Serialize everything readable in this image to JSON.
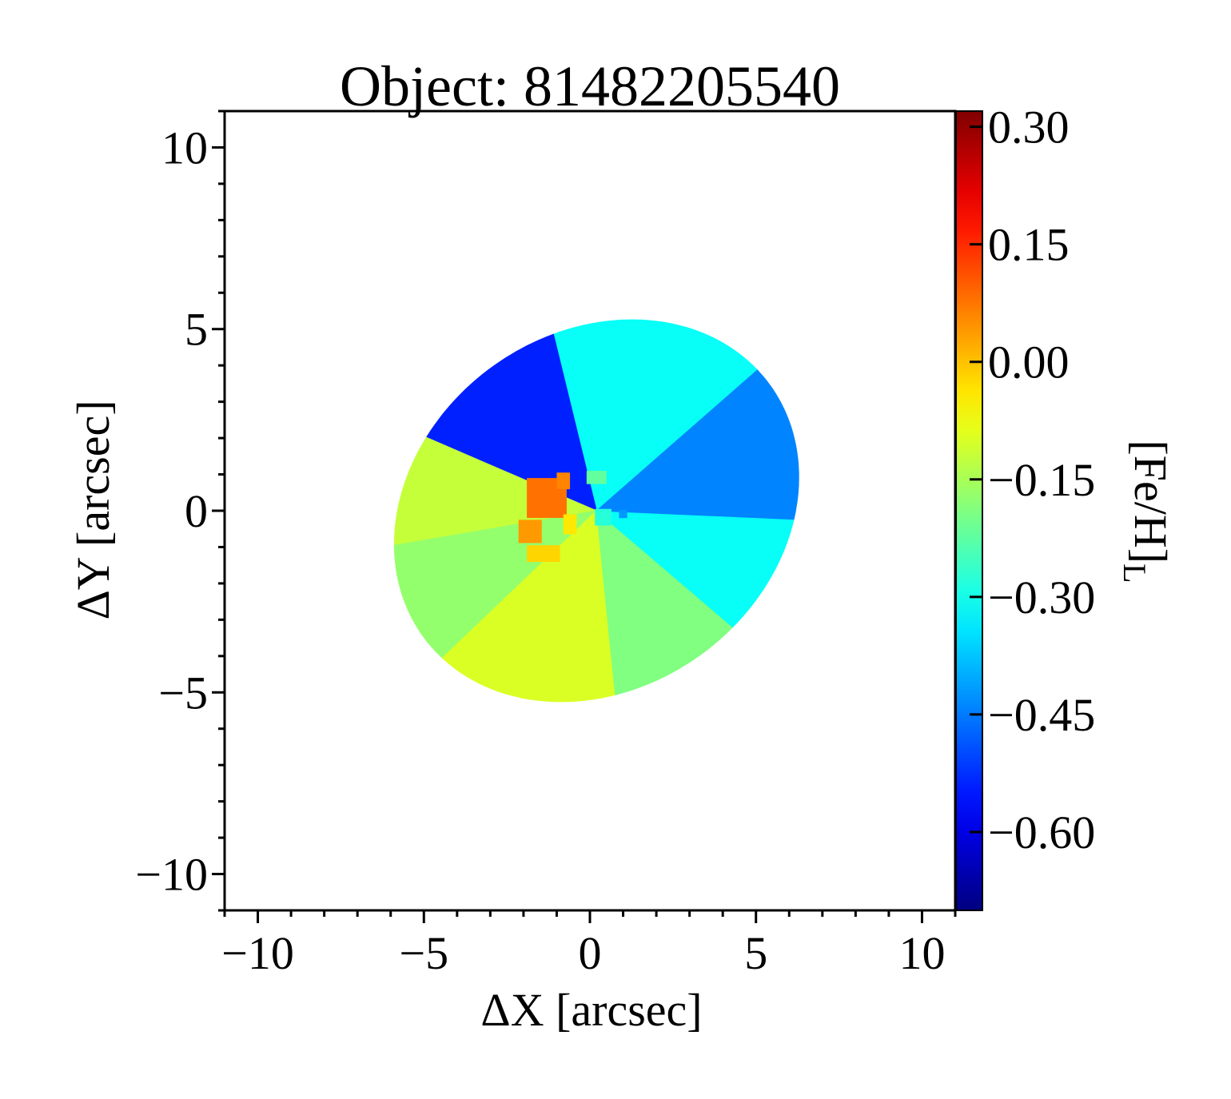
{
  "chart_data": {
    "type": "heatmap",
    "title": "Object: 81482205540",
    "xlabel": "ΔX [arcsec]",
    "ylabel": "ΔY [arcsec]",
    "xlim": [
      -11,
      11
    ],
    "ylim": [
      -11,
      11
    ],
    "xticks": [
      -10,
      -5,
      0,
      5,
      10
    ],
    "yticks": [
      -10,
      -5,
      0,
      5,
      10
    ],
    "xtick_labels": [
      "−10",
      "−5",
      "0",
      "5",
      "10"
    ],
    "ytick_labels": [
      "−10",
      "−5",
      "0",
      "5",
      "10"
    ],
    "colorbar": {
      "label": "[Fe/H]",
      "label_subscript": "L",
      "range": [
        -0.7,
        0.32
      ],
      "ticks": [
        0.3,
        0.15,
        0.0,
        -0.15,
        -0.3,
        -0.45,
        -0.6
      ],
      "tick_labels": [
        "0.30",
        "0.15",
        "0.00",
        "−0.15",
        "−0.30",
        "−0.45",
        "−0.60"
      ],
      "colormap": "jet"
    },
    "map": {
      "shape": "ellipse",
      "center": [
        0.2,
        0.0
      ],
      "semi_axes": [
        6.3,
        5.0
      ],
      "rotation_deg": 25,
      "sectors": [
        {
          "theta_from": 17,
          "theta_to": 82,
          "value": -0.31
        },
        {
          "theta_from": 82,
          "theta_to": 127,
          "value": -0.54
        },
        {
          "theta_from": 127,
          "theta_to": 160,
          "value": -0.12
        },
        {
          "theta_from": 160,
          "theta_to": 200,
          "value": -0.17
        },
        {
          "theta_from": 200,
          "theta_to": 255,
          "value": -0.1
        },
        {
          "theta_from": 255,
          "theta_to": 292,
          "value": -0.19
        },
        {
          "theta_from": 292,
          "theta_to": 327,
          "value": -0.31
        },
        {
          "theta_from": 327,
          "theta_to": 377,
          "value": -0.44
        }
      ],
      "core": [
        {
          "x": -1.3,
          "y": 0.3,
          "w": 1.2,
          "h": 1.2,
          "value": 0.08
        },
        {
          "x": -1.8,
          "y": -0.6,
          "w": 0.7,
          "h": 0.7,
          "value": 0.04
        },
        {
          "x": -0.8,
          "y": 0.8,
          "w": 0.4,
          "h": 0.5,
          "value": 0.06
        },
        {
          "x": -1.4,
          "y": -1.2,
          "w": 1.0,
          "h": 0.5,
          "value": -0.02
        },
        {
          "x": -0.6,
          "y": -0.4,
          "w": 0.4,
          "h": 0.6,
          "value": -0.04
        },
        {
          "x": 0.4,
          "y": -0.2,
          "w": 0.5,
          "h": 0.5,
          "value": -0.28
        },
        {
          "x": 0.2,
          "y": 0.9,
          "w": 0.6,
          "h": 0.4,
          "value": -0.22
        },
        {
          "x": 1.0,
          "y": -0.1,
          "w": 0.25,
          "h": 0.25,
          "value": -0.42
        }
      ]
    }
  }
}
